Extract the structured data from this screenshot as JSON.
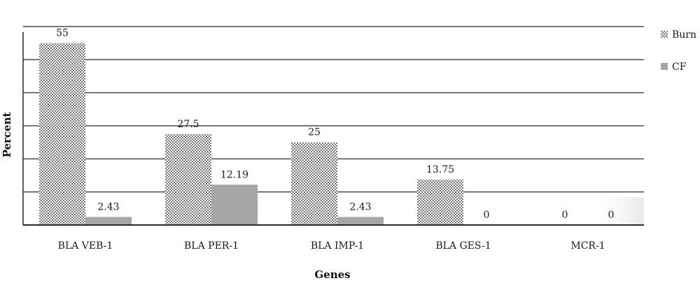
{
  "chart_data": {
    "type": "bar",
    "categories": [
      "BLA VEB-1",
      "BLA PER-1",
      "BLA IMP-1",
      "BLA GES-1",
      "MCR-1"
    ],
    "series": [
      {
        "name": "Burn",
        "values": [
          55,
          27.5,
          25,
          13.75,
          0
        ],
        "labels": [
          "55",
          "27.5",
          "25",
          "13.75",
          "0"
        ],
        "pattern": "dotted",
        "color": "#8a8a8a"
      },
      {
        "name": "CF",
        "values": [
          2.43,
          12.19,
          2.43,
          0,
          0
        ],
        "labels": [
          "2.43",
          "12.19",
          "2.43",
          "0",
          "0"
        ],
        "pattern": "solid",
        "color": "#a6a6a6"
      }
    ],
    "xlabel": "Genes",
    "ylabel": "Percent",
    "ylim": [
      0,
      60
    ],
    "gridlines": [
      0,
      10,
      20,
      30,
      40,
      50,
      60
    ],
    "grid": true,
    "legend_position": "top-right"
  }
}
